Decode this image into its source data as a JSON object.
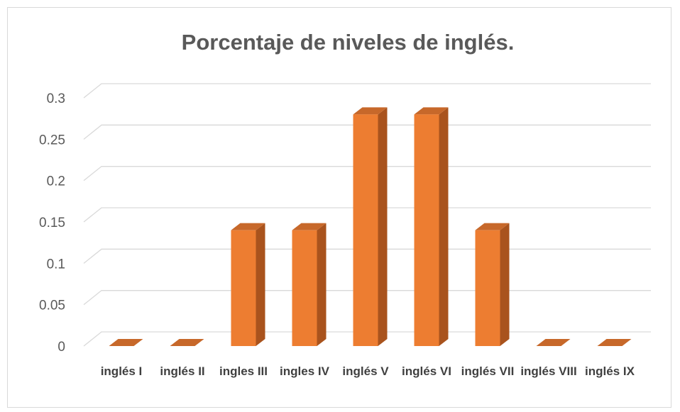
{
  "chart_data": {
    "type": "bar3d",
    "title": "Porcentaje de niveles de inglés.",
    "categories": [
      "inglés I",
      "inglés II",
      "ingles III",
      "ingles IV",
      "inglés V",
      "inglés VI",
      "inglés VII",
      "inglés VIII",
      "inglés IX"
    ],
    "values": [
      0,
      0,
      0.14,
      0.14,
      0.28,
      0.28,
      0.14,
      0,
      0
    ],
    "color": "#ed7d31",
    "ylim": [
      0,
      0.3
    ],
    "yticks": [
      0,
      0.05,
      0.1,
      0.15,
      0.2,
      0.25,
      0.3
    ],
    "grid": true
  }
}
